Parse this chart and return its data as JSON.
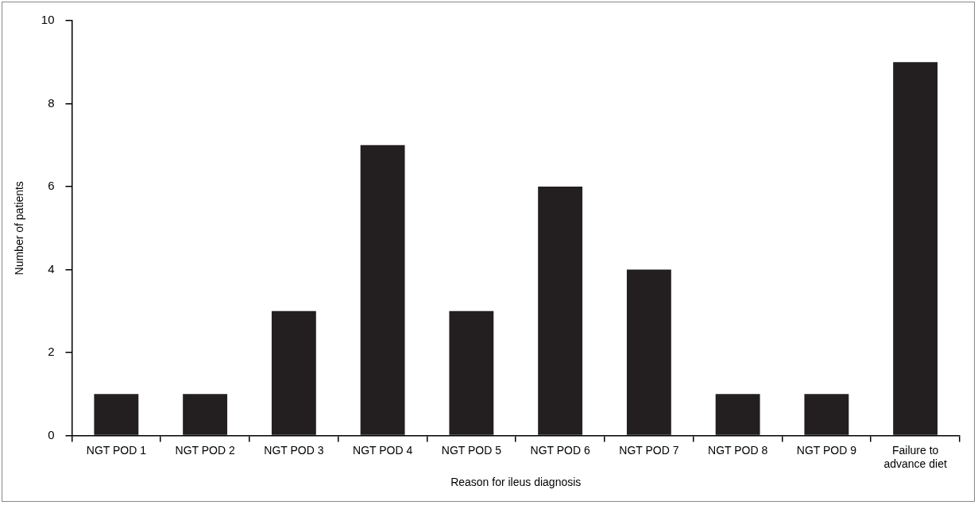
{
  "chart_data": {
    "type": "bar",
    "xlabel": "Reason for ileus diagnosis",
    "ylabel": "Number of patients",
    "categories": [
      "NGT POD 1",
      "NGT POD 2",
      "NGT POD 3",
      "NGT POD 4",
      "NGT POD 5",
      "NGT POD 6",
      "NGT POD 7",
      "NGT POD 8",
      "NGT POD 9",
      "Failure to advance diet"
    ],
    "values": [
      1,
      1,
      3,
      7,
      3,
      6,
      4,
      1,
      1,
      9
    ],
    "color": "#231f20",
    "ylim": [
      0,
      10
    ],
    "yticks": [
      0,
      2,
      4,
      6,
      8,
      10
    ],
    "grid": false,
    "legend": false
  }
}
